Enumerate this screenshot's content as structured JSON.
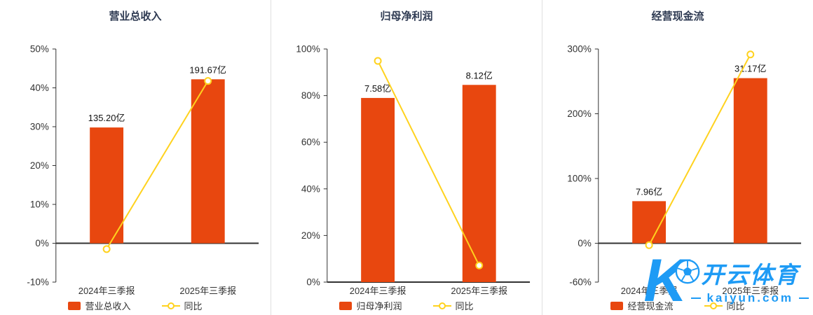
{
  "colors": {
    "bar": "#e8470f",
    "line": "#ffd21e",
    "axis": "#333333",
    "text": "#333333",
    "title": "#2e3a52",
    "divider": "#e0e0e0",
    "watermark": "#1e9bf5"
  },
  "watermark": {
    "icon": "soccer-ball-and-letter-k",
    "text": "开云体育",
    "subtext": "kaiyun.com"
  },
  "chart_data": [
    {
      "type": "bar+line",
      "title": "营业总收入",
      "categories": [
        "2024年三季报",
        "2025年三季报"
      ],
      "ylim": [
        -10,
        50
      ],
      "yticks": [
        50,
        40,
        30,
        20,
        10,
        0,
        -10
      ],
      "y_unit": "%",
      "grid": false,
      "legend_position": "bottom",
      "series": [
        {
          "name": "营业总收入",
          "type": "bar",
          "labels": [
            "135.20亿",
            "191.67亿"
          ],
          "axis_values": [
            29.8,
            42.2
          ]
        },
        {
          "name": "同比",
          "type": "line",
          "axis_values": [
            -1.5,
            41.77
          ]
        }
      ]
    },
    {
      "type": "bar+line",
      "title": "归母净利润",
      "categories": [
        "2024年三季报",
        "2025年三季报"
      ],
      "ylim": [
        0,
        100
      ],
      "yticks": [
        100,
        80,
        60,
        40,
        20,
        0
      ],
      "y_unit": "%",
      "grid": false,
      "legend_position": "bottom",
      "series": [
        {
          "name": "归母净利润",
          "type": "bar",
          "labels": [
            "7.58亿",
            "8.12亿"
          ],
          "axis_values": [
            79,
            84.6
          ]
        },
        {
          "name": "同比",
          "type": "line",
          "axis_values": [
            94.9,
            7.12
          ]
        }
      ]
    },
    {
      "type": "bar+line",
      "title": "经营现金流",
      "categories": [
        "2024年三季报",
        "2025年三季报"
      ],
      "ylim": [
        -60,
        300
      ],
      "yticks": [
        300,
        200,
        100,
        0,
        -60
      ],
      "y_unit": "%",
      "grid": false,
      "legend_position": "bottom",
      "series": [
        {
          "name": "经营现金流",
          "type": "bar",
          "labels": [
            "7.96亿",
            "31.17亿"
          ],
          "axis_values": [
            65,
            255
          ]
        },
        {
          "name": "同比",
          "type": "line",
          "axis_values": [
            -3,
            291.6
          ]
        }
      ]
    }
  ]
}
